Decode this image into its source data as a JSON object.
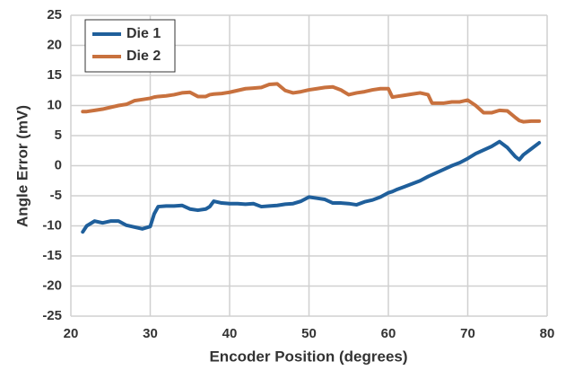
{
  "chart_data": {
    "type": "line",
    "xlabel": "Encoder Position (degrees)",
    "ylabel": "Angle Error (mV)",
    "x": [
      21.5,
      22,
      23,
      24,
      25,
      26,
      27,
      28,
      29,
      30,
      30.5,
      31,
      32,
      33,
      34,
      35,
      36,
      37,
      37.5,
      38,
      39,
      40,
      41,
      42,
      43,
      44,
      45,
      46,
      47,
      48,
      49,
      50,
      51,
      52,
      53,
      54,
      55,
      56,
      57,
      58,
      59,
      60,
      60.5,
      61,
      62,
      63,
      64,
      65,
      65.5,
      66,
      67,
      68,
      69,
      70,
      71,
      72,
      73,
      74,
      75,
      76,
      76.5,
      77,
      78,
      79
    ],
    "series": [
      {
        "name": "Die 1",
        "color": "#1f5f9b",
        "values": [
          -11,
          -10,
          -9.2,
          -9.5,
          -9.2,
          -9.2,
          -9.9,
          -10.2,
          -10.5,
          -10.1,
          -8,
          -6.8,
          -6.7,
          -6.7,
          -6.6,
          -7.2,
          -7.4,
          -7.2,
          -6.8,
          -5.9,
          -6.2,
          -6.3,
          -6.3,
          -6.4,
          -6.3,
          -6.8,
          -6.7,
          -6.6,
          -6.4,
          -6.3,
          -5.9,
          -5.2,
          -5.4,
          -5.6,
          -6.2,
          -6.2,
          -6.3,
          -6.5,
          -6,
          -5.7,
          -5.2,
          -4.5,
          -4.3,
          -4,
          -3.5,
          -3,
          -2.5,
          -1.8,
          -1.5,
          -1.2,
          -0.6,
          0,
          0.5,
          1.2,
          2,
          2.6,
          3.2,
          4,
          3,
          1.5,
          1,
          1.8,
          2.8,
          3.8
        ]
      },
      {
        "name": "Die 2",
        "color": "#c8713e",
        "values": [
          9,
          9,
          9.2,
          9.4,
          9.7,
          10,
          10.2,
          10.8,
          11,
          11.2,
          11.4,
          11.5,
          11.6,
          11.8,
          12.1,
          12.2,
          11.5,
          11.5,
          11.8,
          11.9,
          12,
          12.2,
          12.5,
          12.8,
          12.9,
          13,
          13.5,
          13.6,
          12.5,
          12.1,
          12.3,
          12.6,
          12.8,
          13,
          13.1,
          12.6,
          11.8,
          12.1,
          12.3,
          12.6,
          12.8,
          12.8,
          11.4,
          11.5,
          11.7,
          11.9,
          12.1,
          11.8,
          10.4,
          10.4,
          10.4,
          10.6,
          10.6,
          10.9,
          10,
          8.8,
          8.8,
          9.2,
          9.1,
          8,
          7.5,
          7.3,
          7.4,
          7.4
        ]
      }
    ],
    "xlim": [
      20,
      80
    ],
    "xticks": [
      20,
      30,
      40,
      50,
      60,
      70,
      80
    ],
    "ylim": [
      -25,
      25
    ],
    "yticks": [
      -25,
      -20,
      -15,
      -10,
      -5,
      0,
      5,
      10,
      15,
      20,
      25
    ],
    "grid": true,
    "legend": "upper left"
  }
}
